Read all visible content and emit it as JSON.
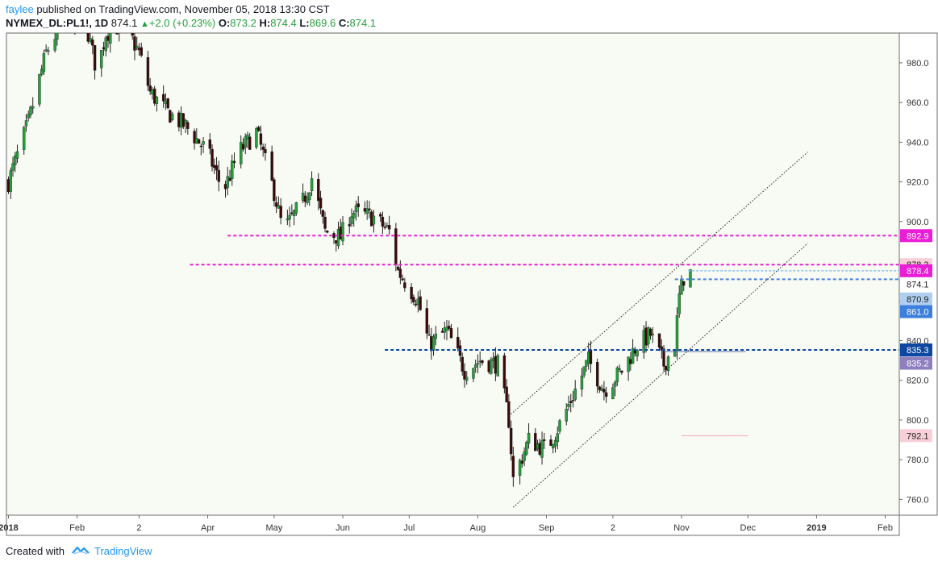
{
  "header": {
    "publisher": "faylee",
    "published_text": "published on TradingView.com, November 05, 2018 13:30 CST",
    "symbol": "NYMEX_DL:PL1!, 1D",
    "last": "874.1",
    "change": "+2.0 (+0.23%)",
    "open_label": "O:",
    "open": "873.2",
    "high_label": "H:",
    "high": "874.4",
    "low_label": "L:",
    "low": "869.6",
    "close_label": "C:",
    "close": "874.1"
  },
  "footer": {
    "created_with": "Created with",
    "brand": "TradingView"
  },
  "colors": {
    "up": "#26a03c",
    "down": "#3a0a0a",
    "magenta": "#e91ed6",
    "navy": "#0d47a1",
    "blue": "#4a7fe0",
    "light_blue": "#90c4ee",
    "background": "#f8fbf3"
  },
  "chart_data": {
    "type": "candlestick",
    "symbol": "NYMEX_DL:PL1!",
    "interval": "1D",
    "ylim": [
      752,
      995
    ],
    "y_ticks": [
      "760.0",
      "780.0",
      "800.0",
      "820.0",
      "840.0",
      "860.0",
      "880.0",
      "900.0",
      "920.0",
      "940.0",
      "960.0",
      "980.0"
    ],
    "x_ticks": [
      {
        "label": "2018",
        "bold": true,
        "date": "2018-01-01"
      },
      {
        "label": "Feb",
        "bold": false,
        "date": "2018-02-01"
      },
      {
        "label": "2",
        "bold": false,
        "date": "2018-03-01"
      },
      {
        "label": "Apr",
        "bold": false,
        "date": "2018-04-01"
      },
      {
        "label": "May",
        "bold": false,
        "date": "2018-05-01"
      },
      {
        "label": "Jun",
        "bold": false,
        "date": "2018-06-01"
      },
      {
        "label": "Jul",
        "bold": false,
        "date": "2018-07-01"
      },
      {
        "label": "Aug",
        "bold": false,
        "date": "2018-08-01"
      },
      {
        "label": "Sep",
        "bold": false,
        "date": "2018-09-01"
      },
      {
        "label": "2",
        "bold": false,
        "date": "2018-10-01"
      },
      {
        "label": "Nov",
        "bold": false,
        "date": "2018-11-01"
      },
      {
        "label": "Dec",
        "bold": false,
        "date": "2018-12-01"
      },
      {
        "label": "2019",
        "bold": true,
        "date": "2019-01-01"
      },
      {
        "label": "Feb",
        "bold": false,
        "date": "2019-02-01"
      }
    ],
    "price_path": [
      {
        "date": "2018-01-01",
        "close": 920
      },
      {
        "date": "2018-01-10",
        "close": 950
      },
      {
        "date": "2018-01-18",
        "close": 985
      },
      {
        "date": "2018-01-25",
        "close": 1000
      },
      {
        "date": "2018-02-05",
        "close": 1000
      },
      {
        "date": "2018-02-10",
        "close": 975
      },
      {
        "date": "2018-02-14",
        "close": 995
      },
      {
        "date": "2018-02-22",
        "close": 1000
      },
      {
        "date": "2018-03-01",
        "close": 985
      },
      {
        "date": "2018-03-06",
        "close": 965
      },
      {
        "date": "2018-03-14",
        "close": 955
      },
      {
        "date": "2018-03-22",
        "close": 948
      },
      {
        "date": "2018-04-01",
        "close": 935
      },
      {
        "date": "2018-04-08",
        "close": 915
      },
      {
        "date": "2018-04-15",
        "close": 935
      },
      {
        "date": "2018-04-23",
        "close": 945
      },
      {
        "date": "2018-05-01",
        "close": 915
      },
      {
        "date": "2018-05-05",
        "close": 895
      },
      {
        "date": "2018-05-14",
        "close": 910
      },
      {
        "date": "2018-05-18",
        "close": 922
      },
      {
        "date": "2018-05-24",
        "close": 895
      },
      {
        "date": "2018-05-31",
        "close": 892
      },
      {
        "date": "2018-06-05",
        "close": 905
      },
      {
        "date": "2018-06-15",
        "close": 902
      },
      {
        "date": "2018-06-22",
        "close": 895
      },
      {
        "date": "2018-06-26",
        "close": 875
      },
      {
        "date": "2018-07-05",
        "close": 860
      },
      {
        "date": "2018-07-10",
        "close": 838
      },
      {
        "date": "2018-07-18",
        "close": 845
      },
      {
        "date": "2018-07-26",
        "close": 825
      },
      {
        "date": "2018-08-02",
        "close": 830
      },
      {
        "date": "2018-08-10",
        "close": 828
      },
      {
        "date": "2018-08-15",
        "close": 800
      },
      {
        "date": "2018-08-17",
        "close": 770
      },
      {
        "date": "2018-08-24",
        "close": 790
      },
      {
        "date": "2018-09-01",
        "close": 785
      },
      {
        "date": "2018-09-08",
        "close": 800
      },
      {
        "date": "2018-09-14",
        "close": 815
      },
      {
        "date": "2018-09-20",
        "close": 830
      },
      {
        "date": "2018-09-27",
        "close": 815
      },
      {
        "date": "2018-10-05",
        "close": 825
      },
      {
        "date": "2018-10-12",
        "close": 838
      },
      {
        "date": "2018-10-18",
        "close": 843
      },
      {
        "date": "2018-10-24",
        "close": 828
      },
      {
        "date": "2018-10-29",
        "close": 838
      },
      {
        "date": "2018-10-31",
        "close": 862
      },
      {
        "date": "2018-11-02",
        "close": 872
      },
      {
        "date": "2018-11-05",
        "close": 874.1
      }
    ],
    "horizontal_lines": [
      {
        "price": 892.9,
        "color": "#e91ed6",
        "style": "dashed",
        "from_date": "2018-04-10",
        "label": "892.9"
      },
      {
        "price": 878.3,
        "color": "#e91ed6",
        "style": "dashed",
        "from_date": "2018-03-24",
        "label": "878.3"
      },
      {
        "price": 870.9,
        "color": "#4a7fe0",
        "style": "dashed",
        "from_date": "2018-10-29",
        "label": "870.9"
      },
      {
        "price": 835.3,
        "color": "#0d47a1",
        "style": "dashed",
        "from_date": "2018-06-20",
        "label": "835.3"
      }
    ],
    "price_labels": [
      {
        "price": 878.3,
        "text": "878.3",
        "bg": "#f8cfd8",
        "fg": "#222222"
      },
      {
        "price": 875.2,
        "text": "878.4",
        "bg": "#e91ed6",
        "fg": "#ffffff"
      },
      {
        "price": 868.5,
        "text": "874.1",
        "bg": "#ffffff",
        "fg": "#222222"
      },
      {
        "price": 861.0,
        "text": "870.9",
        "bg": "#b0cff0",
        "fg": "#222222"
      },
      {
        "price": 854.6,
        "text": "861.0",
        "bg": "#3d7fdc",
        "fg": "#ffffff"
      },
      {
        "price": 835.3,
        "text": "835.3",
        "bg": "#0d47a1",
        "fg": "#ffffff"
      },
      {
        "price": 828.6,
        "text": "835.2",
        "bg": "#8e7fbf",
        "fg": "#ffffff"
      },
      {
        "price": 792.1,
        "text": "792.1",
        "bg": "#f8cfd8",
        "fg": "#222222"
      },
      {
        "price": 892.9,
        "text": "892.9",
        "bg": "#e91ed6",
        "fg": "#ffffff"
      }
    ],
    "trend_channel": [
      {
        "from": {
          "date": "2018-08-15",
          "price": 802
        },
        "to": {
          "date": "2018-12-28",
          "price": 935
        }
      },
      {
        "from": {
          "date": "2018-08-17",
          "price": 756
        },
        "to": {
          "date": "2018-12-28",
          "price": 889
        }
      }
    ]
  }
}
